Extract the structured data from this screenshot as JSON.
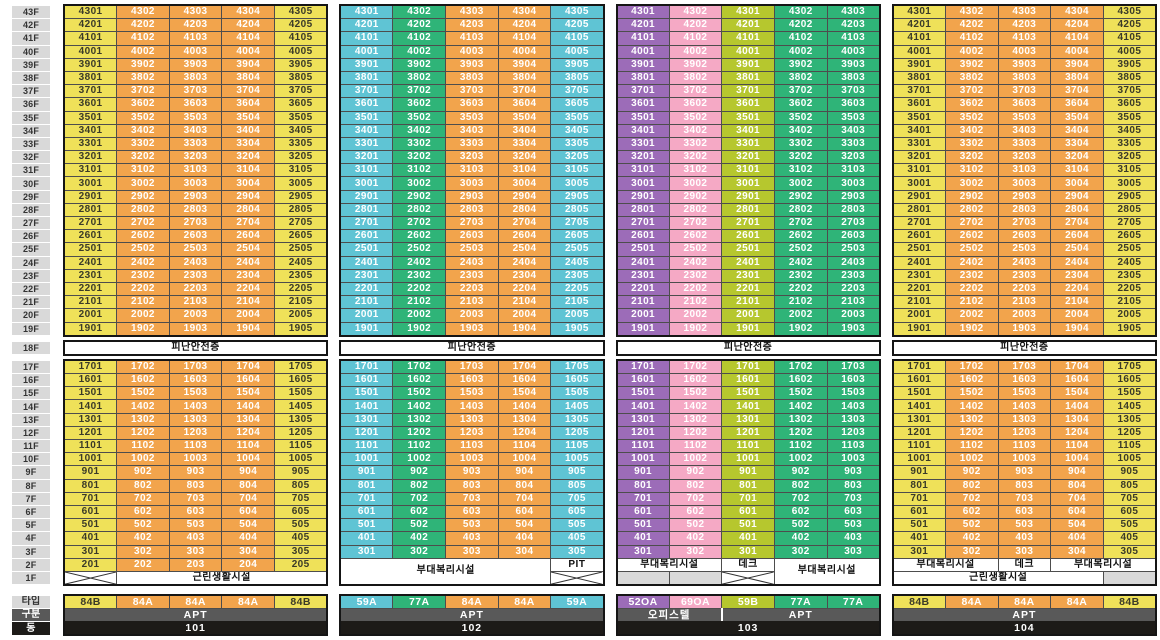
{
  "palette": {
    "yellow": {
      "bg": "#EFE159",
      "text": "#3A3A28"
    },
    "orange": {
      "bg": "#F2A44C",
      "text": "#FFFFFF"
    },
    "teal": {
      "bg": "#5FC4D4",
      "text": "#FFFFFF"
    },
    "green": {
      "bg": "#2FB478",
      "text": "#FFFFFF"
    },
    "purple": {
      "bg": "#9C6CB8",
      "text": "#FFFFFF"
    },
    "pink": {
      "bg": "#F5A9C5",
      "text": "#FFFFFF"
    },
    "lime": {
      "bg": "#B6C72E",
      "text": "#FFFFFF"
    },
    "floor_label_bg": "#D9D9D9",
    "floor_label_text": "#333333",
    "empty_cell_bg": "#D9D9D9",
    "facility_bg": "#FFFFFF",
    "facility_text": "#111111",
    "category_bg": "#595959",
    "category_text": "#FFFFFF",
    "building_bg": "#1D1B18",
    "building_text": "#FFFFFF",
    "grid_border": "#4D4D4D",
    "outer_border": "#151515",
    "x_mark": "#333333"
  },
  "floor_axis": {
    "upper": [
      "43F",
      "42F",
      "41F",
      "40F",
      "39F",
      "38F",
      "37F",
      "36F",
      "35F",
      "34F",
      "33F",
      "32F",
      "31F",
      "30F",
      "29F",
      "28F",
      "27F",
      "26F",
      "25F",
      "24F",
      "23F",
      "22F",
      "21F",
      "20F",
      "19F"
    ],
    "refuge": "18F",
    "lower": [
      "17F",
      "16F",
      "15F",
      "14F",
      "13F",
      "12F",
      "11F",
      "10F",
      "9F",
      "8F",
      "7F",
      "6F",
      "5F",
      "4F",
      "3F",
      "2F",
      "1F"
    ]
  },
  "refuge_row_label": "피난안전층",
  "meta_labels": {
    "type": "타입",
    "category": "구분",
    "building": "동"
  },
  "buildings": [
    {
      "id": "101",
      "columns": [
        {
          "type": "84B",
          "color": "yellow",
          "suffix": 1
        },
        {
          "type": "84A",
          "color": "orange",
          "suffix": 2
        },
        {
          "type": "84A",
          "color": "orange",
          "suffix": 3
        },
        {
          "type": "84A",
          "color": "orange",
          "suffix": 4
        },
        {
          "type": "84B",
          "color": "yellow",
          "suffix": 5
        }
      ],
      "upper_floor_from": 43,
      "upper_floor_to": 19,
      "lower_floor_from": 17,
      "lower_floor_to": 2,
      "special_rows": [
        [
          {
            "kind": "x",
            "colspan": 1,
            "rowspan": 1
          },
          {
            "kind": "facility",
            "label": "근린생활시설",
            "colspan": 4,
            "rowspan": 1
          }
        ]
      ],
      "category_segments": [
        {
          "label": "APT",
          "span": 5
        }
      ]
    },
    {
      "id": "102",
      "columns": [
        {
          "type": "59A",
          "color": "teal",
          "suffix": 1
        },
        {
          "type": "77A",
          "color": "green",
          "suffix": 2
        },
        {
          "type": "84A",
          "color": "orange",
          "suffix": 3
        },
        {
          "type": "84A",
          "color": "orange",
          "suffix": 4
        },
        {
          "type": "59A",
          "color": "teal",
          "suffix": 5
        }
      ],
      "upper_floor_from": 43,
      "upper_floor_to": 19,
      "lower_floor_from": 17,
      "lower_floor_to": 3,
      "special_rows": [
        [
          {
            "kind": "facility",
            "label": "부대복리시설",
            "colspan": 4,
            "rowspan": 2
          },
          {
            "kind": "facility",
            "label": "PIT",
            "colspan": 1,
            "rowspan": 1
          }
        ],
        [
          {
            "kind": "x",
            "colspan": 1,
            "rowspan": 1
          }
        ]
      ],
      "category_segments": [
        {
          "label": "APT",
          "span": 5
        }
      ]
    },
    {
      "id": "103",
      "columns": [
        {
          "type": "52OA",
          "color": "purple",
          "suffix": 1
        },
        {
          "type": "69OA",
          "color": "pink",
          "suffix": 2
        },
        {
          "type": "59B",
          "color": "lime",
          "suffix": 1
        },
        {
          "type": "77A",
          "color": "green",
          "suffix": 2
        },
        {
          "type": "77A",
          "color": "green",
          "suffix": 3
        }
      ],
      "upper_floor_from": 43,
      "upper_floor_to": 19,
      "lower_floor_from": 17,
      "lower_floor_to": 3,
      "special_rows": [
        [
          {
            "kind": "facility",
            "label": "부대복리시설",
            "colspan": 2,
            "rowspan": 1
          },
          {
            "kind": "facility",
            "label": "데크",
            "colspan": 1,
            "rowspan": 1
          },
          {
            "kind": "facility",
            "label": "부대복리시설",
            "colspan": 2,
            "rowspan": 2
          }
        ],
        [
          {
            "kind": "empty",
            "colspan": 1,
            "rowspan": 1
          },
          {
            "kind": "empty",
            "colspan": 1,
            "rowspan": 1
          },
          {
            "kind": "x",
            "colspan": 1,
            "rowspan": 1
          }
        ]
      ],
      "category_segments": [
        {
          "label": "오피스텔",
          "span": 2
        },
        {
          "label": "APT",
          "span": 3
        }
      ]
    },
    {
      "id": "104",
      "columns": [
        {
          "type": "84B",
          "color": "yellow",
          "suffix": 1
        },
        {
          "type": "84A",
          "color": "orange",
          "suffix": 2
        },
        {
          "type": "84A",
          "color": "orange",
          "suffix": 3
        },
        {
          "type": "84A",
          "color": "orange",
          "suffix": 4
        },
        {
          "type": "84B",
          "color": "yellow",
          "suffix": 5
        }
      ],
      "upper_floor_from": 43,
      "upper_floor_to": 19,
      "lower_floor_from": 17,
      "lower_floor_to": 3,
      "special_rows": [
        [
          {
            "kind": "facility",
            "label": "부대복리시설",
            "colspan": 2,
            "rowspan": 1
          },
          {
            "kind": "facility",
            "label": "데크",
            "colspan": 1,
            "rowspan": 1
          },
          {
            "kind": "facility",
            "label": "부대복리시설",
            "colspan": 2,
            "rowspan": 1
          }
        ],
        [
          {
            "kind": "facility",
            "label": "근린생활시설",
            "colspan": 4,
            "rowspan": 1
          },
          {
            "kind": "empty",
            "colspan": 1,
            "rowspan": 1
          }
        ]
      ],
      "category_segments": [
        {
          "label": "APT",
          "span": 5
        }
      ]
    }
  ]
}
